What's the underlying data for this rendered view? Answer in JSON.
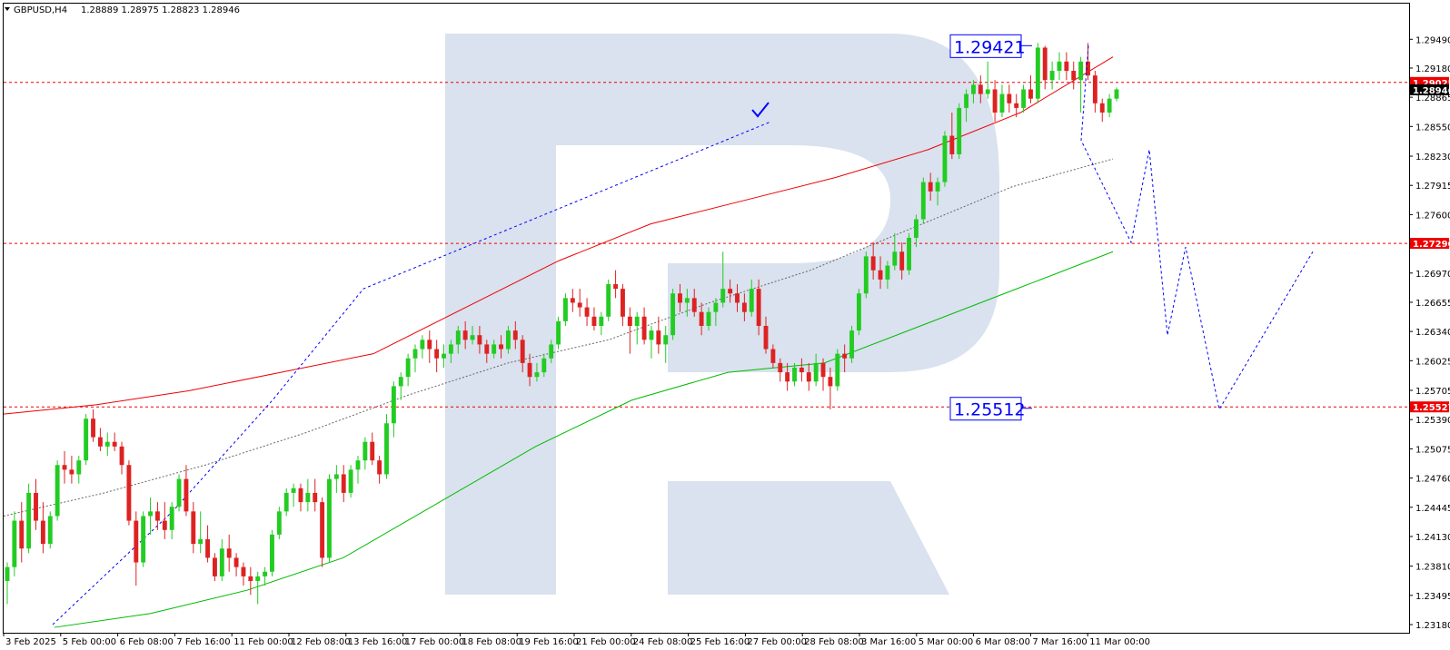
{
  "header": {
    "symbol": "GBPUSD,H4",
    "ohlc": "1.28889 1.28975 1.28823 1.28946"
  },
  "colors": {
    "bull": "#22cc22",
    "bear": "#dd2222",
    "ma_fast": "#ee0000",
    "ma_slow": "#00bb00",
    "ma_mid": "#666666",
    "forecast": "#0000ff",
    "level_line": "#ee0000",
    "price_tag": "#ee0000",
    "current_tag": "#000000",
    "watermark": "#d9e2ee"
  },
  "chart_data": {
    "type": "candlestick",
    "ylim": [
      1.2318,
      1.2962
    ],
    "y_ticks": [
      "1.29490",
      "1.29180",
      "1.28865",
      "1.28550",
      "1.28230",
      "1.27915",
      "1.27600",
      "1.27290",
      "1.26970",
      "1.26655",
      "1.26340",
      "1.26025",
      "1.25705",
      "1.25390",
      "1.25075",
      "1.24760",
      "1.24445",
      "1.24130",
      "1.23810",
      "1.23495",
      "1.23180"
    ],
    "x_ticks": [
      "3 Feb 2025",
      "5 Feb 00:00",
      "6 Feb 08:00",
      "7 Feb 16:00",
      "11 Feb 00:00",
      "12 Feb 08:00",
      "13 Feb 16:00",
      "17 Feb 00:00",
      "18 Feb 08:00",
      "19 Feb 16:00",
      "21 Feb 00:00",
      "24 Feb 08:00",
      "25 Feb 16:00",
      "27 Feb 00:00",
      "28 Feb 08:00",
      "3 Mar 16:00",
      "5 Mar 00:00",
      "6 Mar 08:00",
      "7 Mar 16:00",
      "11 Mar 00:00"
    ],
    "candles": [
      [
        1.2365,
        1.2385,
        1.234,
        1.238
      ],
      [
        1.238,
        1.244,
        1.237,
        1.243
      ],
      [
        1.243,
        1.245,
        1.2385,
        1.24
      ],
      [
        1.24,
        1.247,
        1.2395,
        1.246
      ],
      [
        1.246,
        1.2475,
        1.242,
        1.243
      ],
      [
        1.243,
        1.245,
        1.2395,
        1.2405
      ],
      [
        1.2405,
        1.244,
        1.24,
        1.2435
      ],
      [
        1.2435,
        1.2495,
        1.243,
        1.249
      ],
      [
        1.249,
        1.2505,
        1.247,
        1.2485
      ],
      [
        1.2485,
        1.25,
        1.247,
        1.248
      ],
      [
        1.248,
        1.25,
        1.247,
        1.2495
      ],
      [
        1.2495,
        1.2545,
        1.249,
        1.254
      ],
      [
        1.254,
        1.255,
        1.2515,
        1.252
      ],
      [
        1.252,
        1.253,
        1.2505,
        1.251
      ],
      [
        1.251,
        1.2525,
        1.25,
        1.2515
      ],
      [
        1.2515,
        1.2525,
        1.2505,
        1.251
      ],
      [
        1.251,
        1.2515,
        1.248,
        1.249
      ],
      [
        1.249,
        1.2495,
        1.2425,
        1.243
      ],
      [
        1.243,
        1.244,
        1.236,
        1.2385
      ],
      [
        1.2385,
        1.244,
        1.238,
        1.2435
      ],
      [
        1.2435,
        1.2455,
        1.2415,
        1.244
      ],
      [
        1.244,
        1.245,
        1.242,
        1.243
      ],
      [
        1.243,
        1.245,
        1.241,
        1.242
      ],
      [
        1.242,
        1.245,
        1.241,
        1.2445
      ],
      [
        1.2445,
        1.248,
        1.244,
        1.2475
      ],
      [
        1.2475,
        1.249,
        1.2435,
        1.244
      ],
      [
        1.244,
        1.245,
        1.2395,
        1.2405
      ],
      [
        1.2405,
        1.244,
        1.2395,
        1.241
      ],
      [
        1.241,
        1.2425,
        1.2385,
        1.239
      ],
      [
        1.239,
        1.2395,
        1.2365,
        1.237
      ],
      [
        1.237,
        1.241,
        1.2365,
        1.24
      ],
      [
        1.24,
        1.2415,
        1.2375,
        1.239
      ],
      [
        1.239,
        1.2395,
        1.237,
        1.238
      ],
      [
        1.238,
        1.2385,
        1.236,
        1.237
      ],
      [
        1.237,
        1.238,
        1.235,
        1.2365
      ],
      [
        1.2365,
        1.2375,
        1.234,
        1.237
      ],
      [
        1.237,
        1.238,
        1.236,
        1.2375
      ],
      [
        1.2375,
        1.242,
        1.237,
        1.2415
      ],
      [
        1.2415,
        1.2445,
        1.241,
        1.244
      ],
      [
        1.244,
        1.2465,
        1.2435,
        1.246
      ],
      [
        1.246,
        1.247,
        1.2445,
        1.2465
      ],
      [
        1.2465,
        1.247,
        1.244,
        1.245
      ],
      [
        1.245,
        1.2475,
        1.244,
        1.246
      ],
      [
        1.246,
        1.2475,
        1.244,
        1.245
      ],
      [
        1.245,
        1.2455,
        1.238,
        1.239
      ],
      [
        1.239,
        1.248,
        1.2385,
        1.2475
      ],
      [
        1.2475,
        1.249,
        1.246,
        1.248
      ],
      [
        1.248,
        1.249,
        1.245,
        1.246
      ],
      [
        1.246,
        1.249,
        1.2455,
        1.2485
      ],
      [
        1.2485,
        1.25,
        1.247,
        1.2495
      ],
      [
        1.2495,
        1.252,
        1.2485,
        1.2515
      ],
      [
        1.2515,
        1.2525,
        1.249,
        1.2495
      ],
      [
        1.2495,
        1.25,
        1.247,
        1.248
      ],
      [
        1.248,
        1.2545,
        1.2475,
        1.2535
      ],
      [
        1.2535,
        1.258,
        1.252,
        1.2575
      ],
      [
        1.2575,
        1.259,
        1.256,
        1.2585
      ],
      [
        1.2585,
        1.261,
        1.2575,
        1.2605
      ],
      [
        1.2605,
        1.262,
        1.259,
        1.2615
      ],
      [
        1.2615,
        1.263,
        1.2605,
        1.2625
      ],
      [
        1.2625,
        1.2635,
        1.26,
        1.2615
      ],
      [
        1.2615,
        1.2625,
        1.259,
        1.2605
      ],
      [
        1.2605,
        1.262,
        1.2595,
        1.261
      ],
      [
        1.261,
        1.2625,
        1.26,
        1.262
      ],
      [
        1.262,
        1.264,
        1.261,
        1.2635
      ],
      [
        1.2635,
        1.2645,
        1.2615,
        1.2625
      ],
      [
        1.2625,
        1.264,
        1.262,
        1.263
      ],
      [
        1.263,
        1.264,
        1.261,
        1.262
      ],
      [
        1.262,
        1.2625,
        1.26,
        1.261
      ],
      [
        1.261,
        1.2625,
        1.2605,
        1.262
      ],
      [
        1.262,
        1.263,
        1.2605,
        1.2615
      ],
      [
        1.2615,
        1.264,
        1.261,
        1.2635
      ],
      [
        1.2635,
        1.2645,
        1.2615,
        1.2625
      ],
      [
        1.2625,
        1.263,
        1.259,
        1.26
      ],
      [
        1.26,
        1.261,
        1.2575,
        1.2585
      ],
      [
        1.2585,
        1.26,
        1.258,
        1.259
      ],
      [
        1.259,
        1.261,
        1.2585,
        1.2605
      ],
      [
        1.2605,
        1.2625,
        1.26,
        1.262
      ],
      [
        1.262,
        1.265,
        1.2615,
        1.2645
      ],
      [
        1.2645,
        1.2675,
        1.264,
        1.267
      ],
      [
        1.267,
        1.268,
        1.2655,
        1.2665
      ],
      [
        1.2665,
        1.268,
        1.265,
        1.266
      ],
      [
        1.266,
        1.267,
        1.264,
        1.265
      ],
      [
        1.265,
        1.266,
        1.2635,
        1.264
      ],
      [
        1.264,
        1.2655,
        1.263,
        1.265
      ],
      [
        1.265,
        1.269,
        1.2645,
        1.2685
      ],
      [
        1.2685,
        1.27,
        1.267,
        1.268
      ],
      [
        1.268,
        1.2685,
        1.264,
        1.265
      ],
      [
        1.265,
        1.266,
        1.261,
        1.264
      ],
      [
        1.264,
        1.2655,
        1.262,
        1.265
      ],
      [
        1.265,
        1.266,
        1.262,
        1.2625
      ],
      [
        1.2625,
        1.264,
        1.2605,
        1.2635
      ],
      [
        1.2635,
        1.265,
        1.261,
        1.262
      ],
      [
        1.262,
        1.264,
        1.26,
        1.263
      ],
      [
        1.263,
        1.268,
        1.2625,
        1.2675
      ],
      [
        1.2675,
        1.2685,
        1.2655,
        1.2665
      ],
      [
        1.2665,
        1.268,
        1.265,
        1.267
      ],
      [
        1.267,
        1.268,
        1.265,
        1.2655
      ],
      [
        1.2655,
        1.2665,
        1.263,
        1.264
      ],
      [
        1.264,
        1.266,
        1.2635,
        1.2655
      ],
      [
        1.2655,
        1.267,
        1.264,
        1.2665
      ],
      [
        1.2665,
        1.272,
        1.266,
        1.268
      ],
      [
        1.268,
        1.269,
        1.2665,
        1.2675
      ],
      [
        1.2675,
        1.2685,
        1.2655,
        1.2665
      ],
      [
        1.2665,
        1.2675,
        1.2645,
        1.2655
      ],
      [
        1.2655,
        1.269,
        1.265,
        1.268
      ],
      [
        1.268,
        1.269,
        1.263,
        1.264
      ],
      [
        1.264,
        1.265,
        1.261,
        1.2615
      ],
      [
        1.2615,
        1.262,
        1.2595,
        1.26
      ],
      [
        1.26,
        1.2605,
        1.258,
        1.259
      ],
      [
        1.259,
        1.26,
        1.257,
        1.258
      ],
      [
        1.258,
        1.26,
        1.2575,
        1.2595
      ],
      [
        1.2595,
        1.2605,
        1.258,
        1.259
      ],
      [
        1.259,
        1.26,
        1.257,
        1.258
      ],
      [
        1.258,
        1.261,
        1.2575,
        1.26
      ],
      [
        1.26,
        1.2605,
        1.257,
        1.2585
      ],
      [
        1.2585,
        1.2595,
        1.255,
        1.2575
      ],
      [
        1.2575,
        1.2615,
        1.257,
        1.261
      ],
      [
        1.261,
        1.262,
        1.259,
        1.2605
      ],
      [
        1.2605,
        1.264,
        1.26,
        1.2635
      ],
      [
        1.2635,
        1.268,
        1.263,
        1.2675
      ],
      [
        1.2675,
        1.272,
        1.267,
        1.2715
      ],
      [
        1.2715,
        1.273,
        1.269,
        1.27
      ],
      [
        1.27,
        1.2715,
        1.268,
        1.269
      ],
      [
        1.269,
        1.271,
        1.268,
        1.2705
      ],
      [
        1.2705,
        1.274,
        1.27,
        1.272
      ],
      [
        1.272,
        1.273,
        1.269,
        1.27
      ],
      [
        1.27,
        1.274,
        1.2695,
        1.2735
      ],
      [
        1.2735,
        1.276,
        1.2725,
        1.2755
      ],
      [
        1.2755,
        1.28,
        1.275,
        1.2795
      ],
      [
        1.2795,
        1.2805,
        1.2775,
        1.2785
      ],
      [
        1.2785,
        1.28,
        1.277,
        1.2795
      ],
      [
        1.2795,
        1.285,
        1.279,
        1.2845
      ],
      [
        1.2845,
        1.287,
        1.282,
        1.2825
      ],
      [
        1.2825,
        1.288,
        1.282,
        1.2875
      ],
      [
        1.2875,
        1.2895,
        1.286,
        1.289
      ],
      [
        1.289,
        1.2905,
        1.288,
        1.29
      ],
      [
        1.29,
        1.291,
        1.288,
        1.289
      ],
      [
        1.289,
        1.2925,
        1.2885,
        1.2895
      ],
      [
        1.2895,
        1.2905,
        1.286,
        1.287
      ],
      [
        1.287,
        1.29,
        1.2865,
        1.289
      ],
      [
        1.289,
        1.29,
        1.287,
        1.288
      ],
      [
        1.288,
        1.289,
        1.2865,
        1.2875
      ],
      [
        1.2875,
        1.29,
        1.287,
        1.2895
      ],
      [
        1.2895,
        1.291,
        1.288,
        1.2885
      ],
      [
        1.2885,
        1.2945,
        1.288,
        1.294
      ],
      [
        1.294,
        1.2942,
        1.2895,
        1.2905
      ],
      [
        1.2905,
        1.2925,
        1.2895,
        1.2915
      ],
      [
        1.2915,
        1.2935,
        1.2905,
        1.2925
      ],
      [
        1.2925,
        1.2935,
        1.2905,
        1.2915
      ],
      [
        1.2915,
        1.2925,
        1.2895,
        1.2905
      ],
      [
        1.2905,
        1.293,
        1.287,
        1.2925
      ],
      [
        1.2925,
        1.2945,
        1.2905,
        1.291
      ],
      [
        1.291,
        1.2915,
        1.287,
        1.288
      ],
      [
        1.288,
        1.2885,
        1.286,
        1.287
      ],
      [
        1.287,
        1.289,
        1.2865,
        1.2885
      ],
      [
        1.2885,
        1.2897,
        1.2882,
        1.2895
      ]
    ],
    "ma_fast": [
      1.2545,
      1.2555,
      1.257,
      1.259,
      1.261,
      1.266,
      1.271,
      1.275,
      1.2775,
      1.28,
      1.283,
      1.287,
      1.293
    ],
    "ma_mid": [
      1.2435,
      1.246,
      1.249,
      1.2525,
      1.2565,
      1.26,
      1.2625,
      1.2665,
      1.27,
      1.2745,
      1.279,
      1.282
    ],
    "ma_slow": [
      1.2315,
      1.233,
      1.2355,
      1.239,
      1.245,
      1.251,
      1.256,
      1.259,
      1.26,
      1.264,
      1.268,
      1.272
    ],
    "levels": [
      {
        "price": 1.29025,
        "label": "1.29025"
      },
      {
        "price": 1.2729,
        "label": "1.27290"
      },
      {
        "price": 1.25527,
        "label": "1.25527"
      }
    ],
    "current_price": {
      "price": 1.28946,
      "label": "1.28946"
    },
    "annotations": [
      {
        "text": "1.29421",
        "price": 1.29421
      },
      {
        "text": "1.25512",
        "price": 1.25512
      }
    ],
    "forecast_path_prices": [
      1.2942,
      1.284,
      1.273,
      1.283,
      1.273,
      1.263,
      1.2725,
      1.255,
      1.272
    ],
    "past_wave_prices": [
      1.2318,
      1.244,
      1.256,
      1.268,
      1.286
    ],
    "watermark_letter": "R"
  }
}
